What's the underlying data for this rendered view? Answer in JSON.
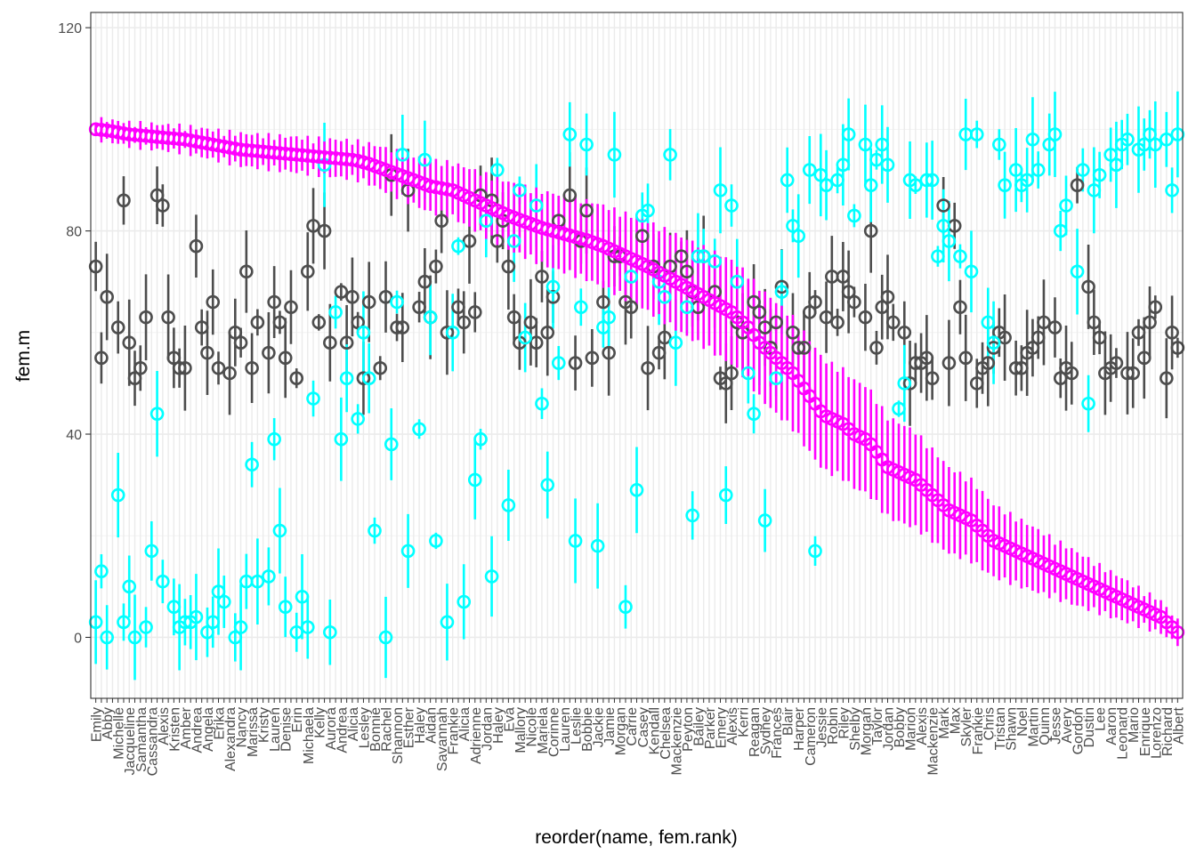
{
  "chart_data": {
    "type": "scatter",
    "xlabel": "reorder(name, fem.rank)",
    "ylabel": "fem.m",
    "ylim": [
      -12,
      123
    ],
    "y_ticks": [
      0,
      40,
      80,
      120
    ],
    "grid": true,
    "legend": "none",
    "colors": {
      "magenta": "#ff00ff",
      "cyan": "#00ffff",
      "gray": "#4d4d4d"
    },
    "categories": [
      "Emily",
      "",
      "Abby",
      "",
      "Michelle",
      "",
      "Jacqueline",
      "",
      "Samantha",
      "",
      "Cassandra",
      "",
      "Alexis",
      "",
      "Kristen",
      "",
      "Amber",
      "",
      "Andrea",
      "",
      "Angela",
      "",
      "Erika",
      "",
      "Alexandra",
      "",
      "Nancy",
      "",
      "Marissa",
      "",
      "Kristy",
      "",
      "Lauren",
      "",
      "Denise",
      "",
      "Erin",
      "",
      "Michaela",
      "",
      "Kelly",
      "",
      "Aurora",
      "",
      "Andrea",
      "",
      "Alicia",
      "",
      "Lesley",
      "",
      "Bonnie",
      "",
      "Rachel",
      "",
      "Shannon",
      "",
      "Esther",
      "",
      "Haley",
      "",
      "Aidan",
      "",
      "Savannah",
      "",
      "Frankie",
      "",
      "Alicia",
      "",
      "Adrienne",
      "",
      "Jordan",
      "",
      "Haley",
      "",
      "Eva",
      "",
      "Mallory",
      "",
      "Nicole",
      "",
      "Mariela",
      "",
      "Corinne",
      "",
      "Lauren",
      "",
      "Leslie",
      "",
      "Bobbie",
      "",
      "Jackie",
      "",
      "Jamie",
      "",
      "Morgan",
      "",
      "Carrie",
      "",
      "Casey",
      "",
      "Kendall",
      "",
      "Chelsea",
      "",
      "Mackenzie",
      "",
      "Peyton",
      "",
      "Bailey",
      "",
      "Parker",
      "",
      "Emery",
      "",
      "Alexis",
      "",
      "Kerri",
      "",
      "Reagan",
      "",
      "Sydney",
      "",
      "Frances",
      "",
      "Blair",
      "",
      "Harper",
      "",
      "Cameron",
      "",
      "Jessie",
      "",
      "Robin",
      "",
      "Riley",
      "",
      "Shelby",
      "",
      "Morgan",
      "",
      "Taylor",
      "",
      "Jordan",
      "",
      "Bobby",
      "",
      "Marion",
      "",
      "Alexis",
      "",
      "Mackenzie",
      "",
      "Mark",
      "",
      "Max",
      "",
      "Skyler",
      "",
      "Frankie",
      "",
      "Chris",
      "",
      "Tristan",
      "",
      "Shawn",
      "",
      "Noel",
      "",
      "Martin",
      "",
      "Quinn",
      "",
      "Jesse",
      "",
      "Avery",
      "",
      "Gordon",
      "",
      "Dustin",
      "",
      "Lee",
      "",
      "Aaron",
      "",
      "Leonard",
      "",
      "Mario",
      "",
      "Enrique",
      "",
      "Lorenzo",
      "",
      "Richard",
      "",
      "Albert"
    ],
    "series": [
      {
        "name": "",
        "color_key": "magenta",
        "values": [
          100,
          99.9,
          99.8,
          99.6,
          99.4,
          99.2,
          99.0,
          98.9,
          98.8,
          98.7,
          98.6,
          98.5,
          98.4,
          98.3,
          98.2,
          98.1,
          98.0,
          97.8,
          97.6,
          97.4,
          97.2,
          97.0,
          96.8,
          96.6,
          96.4,
          96.2,
          96.0,
          95.9,
          95.8,
          95.7,
          95.6,
          95.5,
          95.4,
          95.3,
          95.2,
          95.1,
          95.0,
          94.9,
          94.8,
          94.7,
          94.6,
          94.5,
          94.4,
          94.3,
          94.2,
          94.1,
          94.0,
          93.8,
          93.5,
          93.2,
          92.8,
          92.4,
          92.0,
          91.6,
          91.2,
          90.8,
          90.4,
          90.0,
          89.6,
          89.2,
          88.8,
          88.6,
          88.4,
          88.2,
          88.0,
          87.5,
          87.0,
          86.5,
          86.0,
          85.5,
          85.0,
          84.5,
          84.0,
          83.5,
          83.0,
          82.6,
          82.2,
          81.8,
          81.4,
          81.0,
          80.6,
          80.3,
          80.0,
          79.7,
          79.4,
          79.1,
          78.8,
          78.5,
          78.2,
          77.8,
          77.4,
          77.0,
          76.5,
          76.0,
          75.5,
          75.0,
          74.5,
          74.0,
          73.5,
          73.0,
          72.4,
          71.8,
          71.2,
          70.6,
          70.0,
          69.4,
          68.8,
          68.2,
          67.6,
          67.0,
          66.4,
          65.8,
          65.2,
          64.6,
          64.0,
          63.0,
          62.0,
          61.0,
          59.5,
          58.0,
          57.0,
          56.0,
          55.0,
          54.0,
          53.0,
          52.0,
          50.5,
          49.0,
          47.5,
          46.0,
          44.5,
          43.5,
          43.0,
          42.5,
          42.0,
          41.0,
          40.0,
          39.5,
          39.0,
          38.0,
          36.5,
          35.0,
          33.5,
          33.0,
          32.5,
          32.0,
          31.5,
          31.0,
          30.0,
          29.0,
          28.0,
          27.0,
          26.0,
          25.0,
          24.5,
          24.0,
          23.5,
          23.0,
          22.0,
          21.0,
          20.0,
          19.0,
          18.5,
          18.0,
          17.5,
          17.0,
          16.5,
          16.0,
          15.5,
          15.0,
          14.5,
          14.0,
          13.5,
          13.0,
          12.5,
          12.0,
          11.5,
          11.0,
          10.5,
          10.0,
          9.5,
          9.0,
          8.5,
          8.0,
          7.5,
          7.0,
          6.5,
          6.0,
          5.5,
          5.0,
          4.5,
          4.0,
          3.0,
          2.0,
          1.0
        ]
      },
      {
        "name": "",
        "color_key": "gray",
        "values": [
          73,
          55,
          67,
          61,
          86,
          58,
          51,
          53,
          63,
          87,
          85,
          63,
          55,
          53,
          53,
          77,
          61,
          56,
          66,
          53,
          52,
          60,
          58,
          72,
          53,
          62,
          56,
          66,
          62,
          55,
          65,
          51,
          72,
          81,
          62,
          80,
          58,
          68,
          58,
          67,
          62,
          51,
          66,
          53,
          67,
          91,
          61,
          61,
          88,
          65,
          70,
          63,
          73,
          82,
          60,
          65,
          62,
          78,
          64,
          87,
          86,
          78,
          82,
          73,
          63,
          58,
          62,
          58,
          71,
          60,
          67,
          82,
          87,
          54,
          78,
          84,
          55,
          66,
          56,
          75,
          75,
          66,
          65,
          79,
          53,
          73,
          56,
          59,
          73,
          75,
          72,
          68,
          65,
          75,
          68,
          51,
          50,
          52,
          62,
          60,
          66,
          64,
          61,
          57,
          62,
          69,
          60,
          57,
          57,
          64,
          66,
          63,
          71,
          62,
          71,
          68,
          66,
          63,
          80,
          57,
          65,
          67,
          62,
          60,
          50,
          54,
          54,
          55,
          51,
          85,
          54,
          81,
          65,
          55,
          50,
          53,
          54,
          57,
          60,
          59,
          53,
          53,
          56,
          57,
          59,
          62,
          61,
          51,
          53,
          52,
          89,
          69,
          62,
          59,
          52,
          53,
          54,
          52,
          52,
          60,
          55,
          62,
          65,
          51,
          60,
          57
        ]
      },
      {
        "name": "",
        "color_key": "cyan",
        "values": [
          3,
          13,
          0,
          28,
          3,
          10,
          0,
          2,
          17,
          44,
          11,
          6,
          2,
          3,
          3,
          4,
          1,
          3,
          9,
          7,
          0,
          2,
          11,
          34,
          11,
          12,
          39,
          21,
          6,
          1,
          8,
          2,
          47,
          93,
          1,
          64,
          39,
          51,
          43,
          60,
          51,
          21,
          0,
          38,
          66,
          95,
          17,
          41,
          94,
          63,
          19,
          3,
          60,
          77,
          7,
          31,
          39,
          82,
          12,
          92,
          26,
          78,
          88,
          59,
          85,
          46,
          30,
          69,
          54,
          99,
          19,
          65,
          97,
          18,
          61,
          63,
          95,
          6,
          71,
          29,
          83,
          84,
          70,
          67,
          95,
          58,
          65,
          24,
          75,
          75,
          74,
          88,
          28,
          85,
          70,
          52,
          44,
          58,
          23,
          51,
          68,
          90,
          81,
          79,
          92,
          17,
          91,
          89,
          90,
          93,
          99,
          83,
          97,
          89,
          94,
          97,
          93,
          45,
          50,
          90,
          89,
          90,
          90,
          75,
          81,
          78,
          75,
          99,
          72,
          99,
          62,
          58,
          97,
          89,
          92,
          89,
          90,
          98,
          92,
          97,
          99,
          80,
          85,
          72,
          92,
          46,
          88,
          91,
          95,
          93,
          97,
          98,
          96,
          97,
          99,
          97,
          98,
          88,
          99
        ]
      }
    ]
  }
}
